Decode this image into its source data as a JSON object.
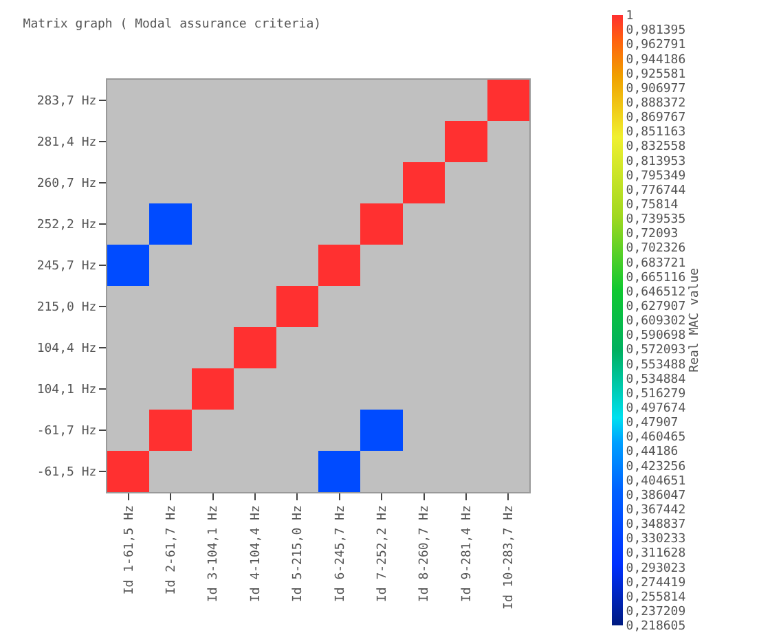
{
  "chart_data": {
    "type": "heatmap",
    "title": "Matrix graph ( Modal assurance criteria)",
    "clabel": "Real MAC value",
    "categories": [
      "Id 1-61,5 Hz",
      "Id 2-61,7 Hz",
      "Id 3-104,1 Hz",
      "Id 4-104,4 Hz",
      "Id 5-215,0 Hz",
      "Id 6-245,7 Hz",
      "Id 7-252,2 Hz",
      "Id 8-260,7 Hz",
      "Id 9-281,4 Hz",
      "Id 10-283,7 Hz"
    ],
    "y_categories": [
      "283,7 Hz",
      "281,4 Hz",
      "260,7 Hz",
      "252,2 Hz",
      "245,7 Hz",
      "215,0 Hz",
      "104,4 Hz",
      "104,1 Hz",
      "-61,7 Hz",
      "-61,5 Hz"
    ],
    "cells": [
      [
        null,
        null,
        null,
        null,
        null,
        null,
        null,
        null,
        null,
        1
      ],
      [
        null,
        null,
        null,
        null,
        null,
        null,
        null,
        null,
        1,
        null
      ],
      [
        null,
        null,
        null,
        null,
        null,
        null,
        null,
        1,
        null,
        null
      ],
      [
        null,
        0.35,
        null,
        null,
        null,
        null,
        1,
        null,
        null,
        null
      ],
      [
        0.35,
        null,
        null,
        null,
        null,
        1,
        null,
        null,
        null,
        null
      ],
      [
        null,
        null,
        null,
        null,
        1,
        null,
        null,
        null,
        null,
        null
      ],
      [
        null,
        null,
        null,
        1,
        null,
        null,
        null,
        null,
        null,
        null
      ],
      [
        null,
        null,
        1,
        null,
        null,
        null,
        null,
        null,
        null,
        null
      ],
      [
        null,
        1,
        null,
        null,
        null,
        null,
        0.35,
        null,
        null,
        null
      ],
      [
        1,
        null,
        null,
        null,
        null,
        0.35,
        null,
        null,
        null,
        null
      ]
    ],
    "clim": [
      0.218605,
      1
    ],
    "cticks": [
      {
        "value": 1,
        "label": "1"
      },
      {
        "value": 0.981395,
        "label": "0,981395"
      },
      {
        "value": 0.962791,
        "label": "0,962791"
      },
      {
        "value": 0.944186,
        "label": "0,944186"
      },
      {
        "value": 0.925581,
        "label": "0,925581"
      },
      {
        "value": 0.906977,
        "label": "0,906977"
      },
      {
        "value": 0.888372,
        "label": "0,888372"
      },
      {
        "value": 0.869767,
        "label": "0,869767"
      },
      {
        "value": 0.851163,
        "label": "0,851163"
      },
      {
        "value": 0.832558,
        "label": "0,832558"
      },
      {
        "value": 0.813953,
        "label": "0,813953"
      },
      {
        "value": 0.795349,
        "label": "0,795349"
      },
      {
        "value": 0.776744,
        "label": "0,776744"
      },
      {
        "value": 0.75814,
        "label": "0,75814"
      },
      {
        "value": 0.739535,
        "label": "0,739535"
      },
      {
        "value": 0.72093,
        "label": "0,72093"
      },
      {
        "value": 0.702326,
        "label": "0,702326"
      },
      {
        "value": 0.683721,
        "label": "0,683721"
      },
      {
        "value": 0.665116,
        "label": "0,665116"
      },
      {
        "value": 0.646512,
        "label": "0,646512"
      },
      {
        "value": 0.627907,
        "label": "0,627907"
      },
      {
        "value": 0.609302,
        "label": "0,609302"
      },
      {
        "value": 0.590698,
        "label": "0,590698"
      },
      {
        "value": 0.572093,
        "label": "0,572093"
      },
      {
        "value": 0.553488,
        "label": "0,553488"
      },
      {
        "value": 0.534884,
        "label": "0,534884"
      },
      {
        "value": 0.516279,
        "label": "0,516279"
      },
      {
        "value": 0.497674,
        "label": "0,497674"
      },
      {
        "value": 0.47907,
        "label": "0,47907"
      },
      {
        "value": 0.460465,
        "label": "0,460465"
      },
      {
        "value": 0.44186,
        "label": "0,44186"
      },
      {
        "value": 0.423256,
        "label": "0,423256"
      },
      {
        "value": 0.404651,
        "label": "0,404651"
      },
      {
        "value": 0.386047,
        "label": "0,386047"
      },
      {
        "value": 0.367442,
        "label": "0,367442"
      },
      {
        "value": 0.348837,
        "label": "0,348837"
      },
      {
        "value": 0.330233,
        "label": "0,330233"
      },
      {
        "value": 0.311628,
        "label": "0,311628"
      },
      {
        "value": 0.293023,
        "label": "0,293023"
      },
      {
        "value": 0.274419,
        "label": "0,274419"
      },
      {
        "value": 0.255814,
        "label": "0,255814"
      },
      {
        "value": 0.237209,
        "label": "0,237209"
      },
      {
        "value": 0.218605,
        "label": "0,218605"
      }
    ]
  }
}
